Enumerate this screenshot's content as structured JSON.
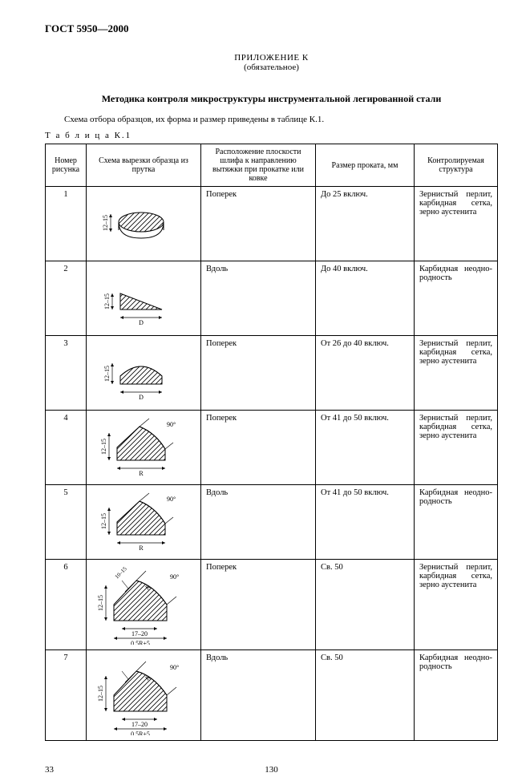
{
  "header": {
    "gost": "ГОСТ 5950—2000",
    "appendix_title": "ПРИЛОЖЕНИЕ К",
    "appendix_note": "(обязательное)",
    "section_title": "Методика контроля микроструктуры инструментальной легированной стали",
    "intro_text": "Схема отбора образцов, их форма и размер приведены в таблице К.1.",
    "table_label": "Т а б л и ц а   К.1"
  },
  "table": {
    "columns": [
      "Номер рисунка",
      "Схема вырезки образца из прутка",
      "Расположение плоскости шлифа к направлению вытяжки при прокатке или ковке",
      "Размер проката, мм",
      "Контролируемая структура"
    ],
    "rows": [
      {
        "num": "1",
        "plane": "Поперек",
        "size": "До 25 включ.",
        "struct": "Зернистый перлит, карбидная сетка, зерно аустенита",
        "dim": "12–15",
        "w": ""
      },
      {
        "num": "2",
        "plane": "Вдоль",
        "size": "До 40 включ.",
        "struct": "Карбидная неодно­родность",
        "dim": "12–15",
        "w": "D"
      },
      {
        "num": "3",
        "plane": "Поперек",
        "size": "От 26 до 40 включ.",
        "struct": "Зернистый перлит, карбидная сетка, зерно аустенита",
        "dim": "12–15",
        "w": "D"
      },
      {
        "num": "4",
        "plane": "Поперек",
        "size": "От 41 до 50 включ.",
        "struct": "Зернистый перлит, карбидная сетка, зерно аустенита",
        "dim": "12–15",
        "w": "R",
        "ang": "90°"
      },
      {
        "num": "5",
        "plane": "Вдоль",
        "size": "От 41 до 50 включ.",
        "struct": "Карбидная неодно­родность",
        "dim": "12–15",
        "w": "R",
        "ang": "90°"
      },
      {
        "num": "6",
        "plane": "Поперек",
        "size": "Св. 50",
        "struct": "Зернистый перлит, карбидная сетка, зерно аустенита",
        "dim": "12–15",
        "w": "17–20",
        "ext": "0,5R±5",
        "ang": "90°",
        "rad": "10–15"
      },
      {
        "num": "7",
        "plane": "Вдоль",
        "size": "Св. 50",
        "struct": "Карбидная неодно­родность",
        "dim": "12–15",
        "w": "17–20",
        "ext": "0,5R±5",
        "ang": "90°"
      }
    ]
  },
  "footer": {
    "left_page": "33",
    "center_page": "130"
  },
  "style": {
    "border_color": "#000000",
    "hatch_color": "#000000",
    "text_color": "#000000",
    "bg": "#ffffff",
    "font": "Times New Roman"
  }
}
